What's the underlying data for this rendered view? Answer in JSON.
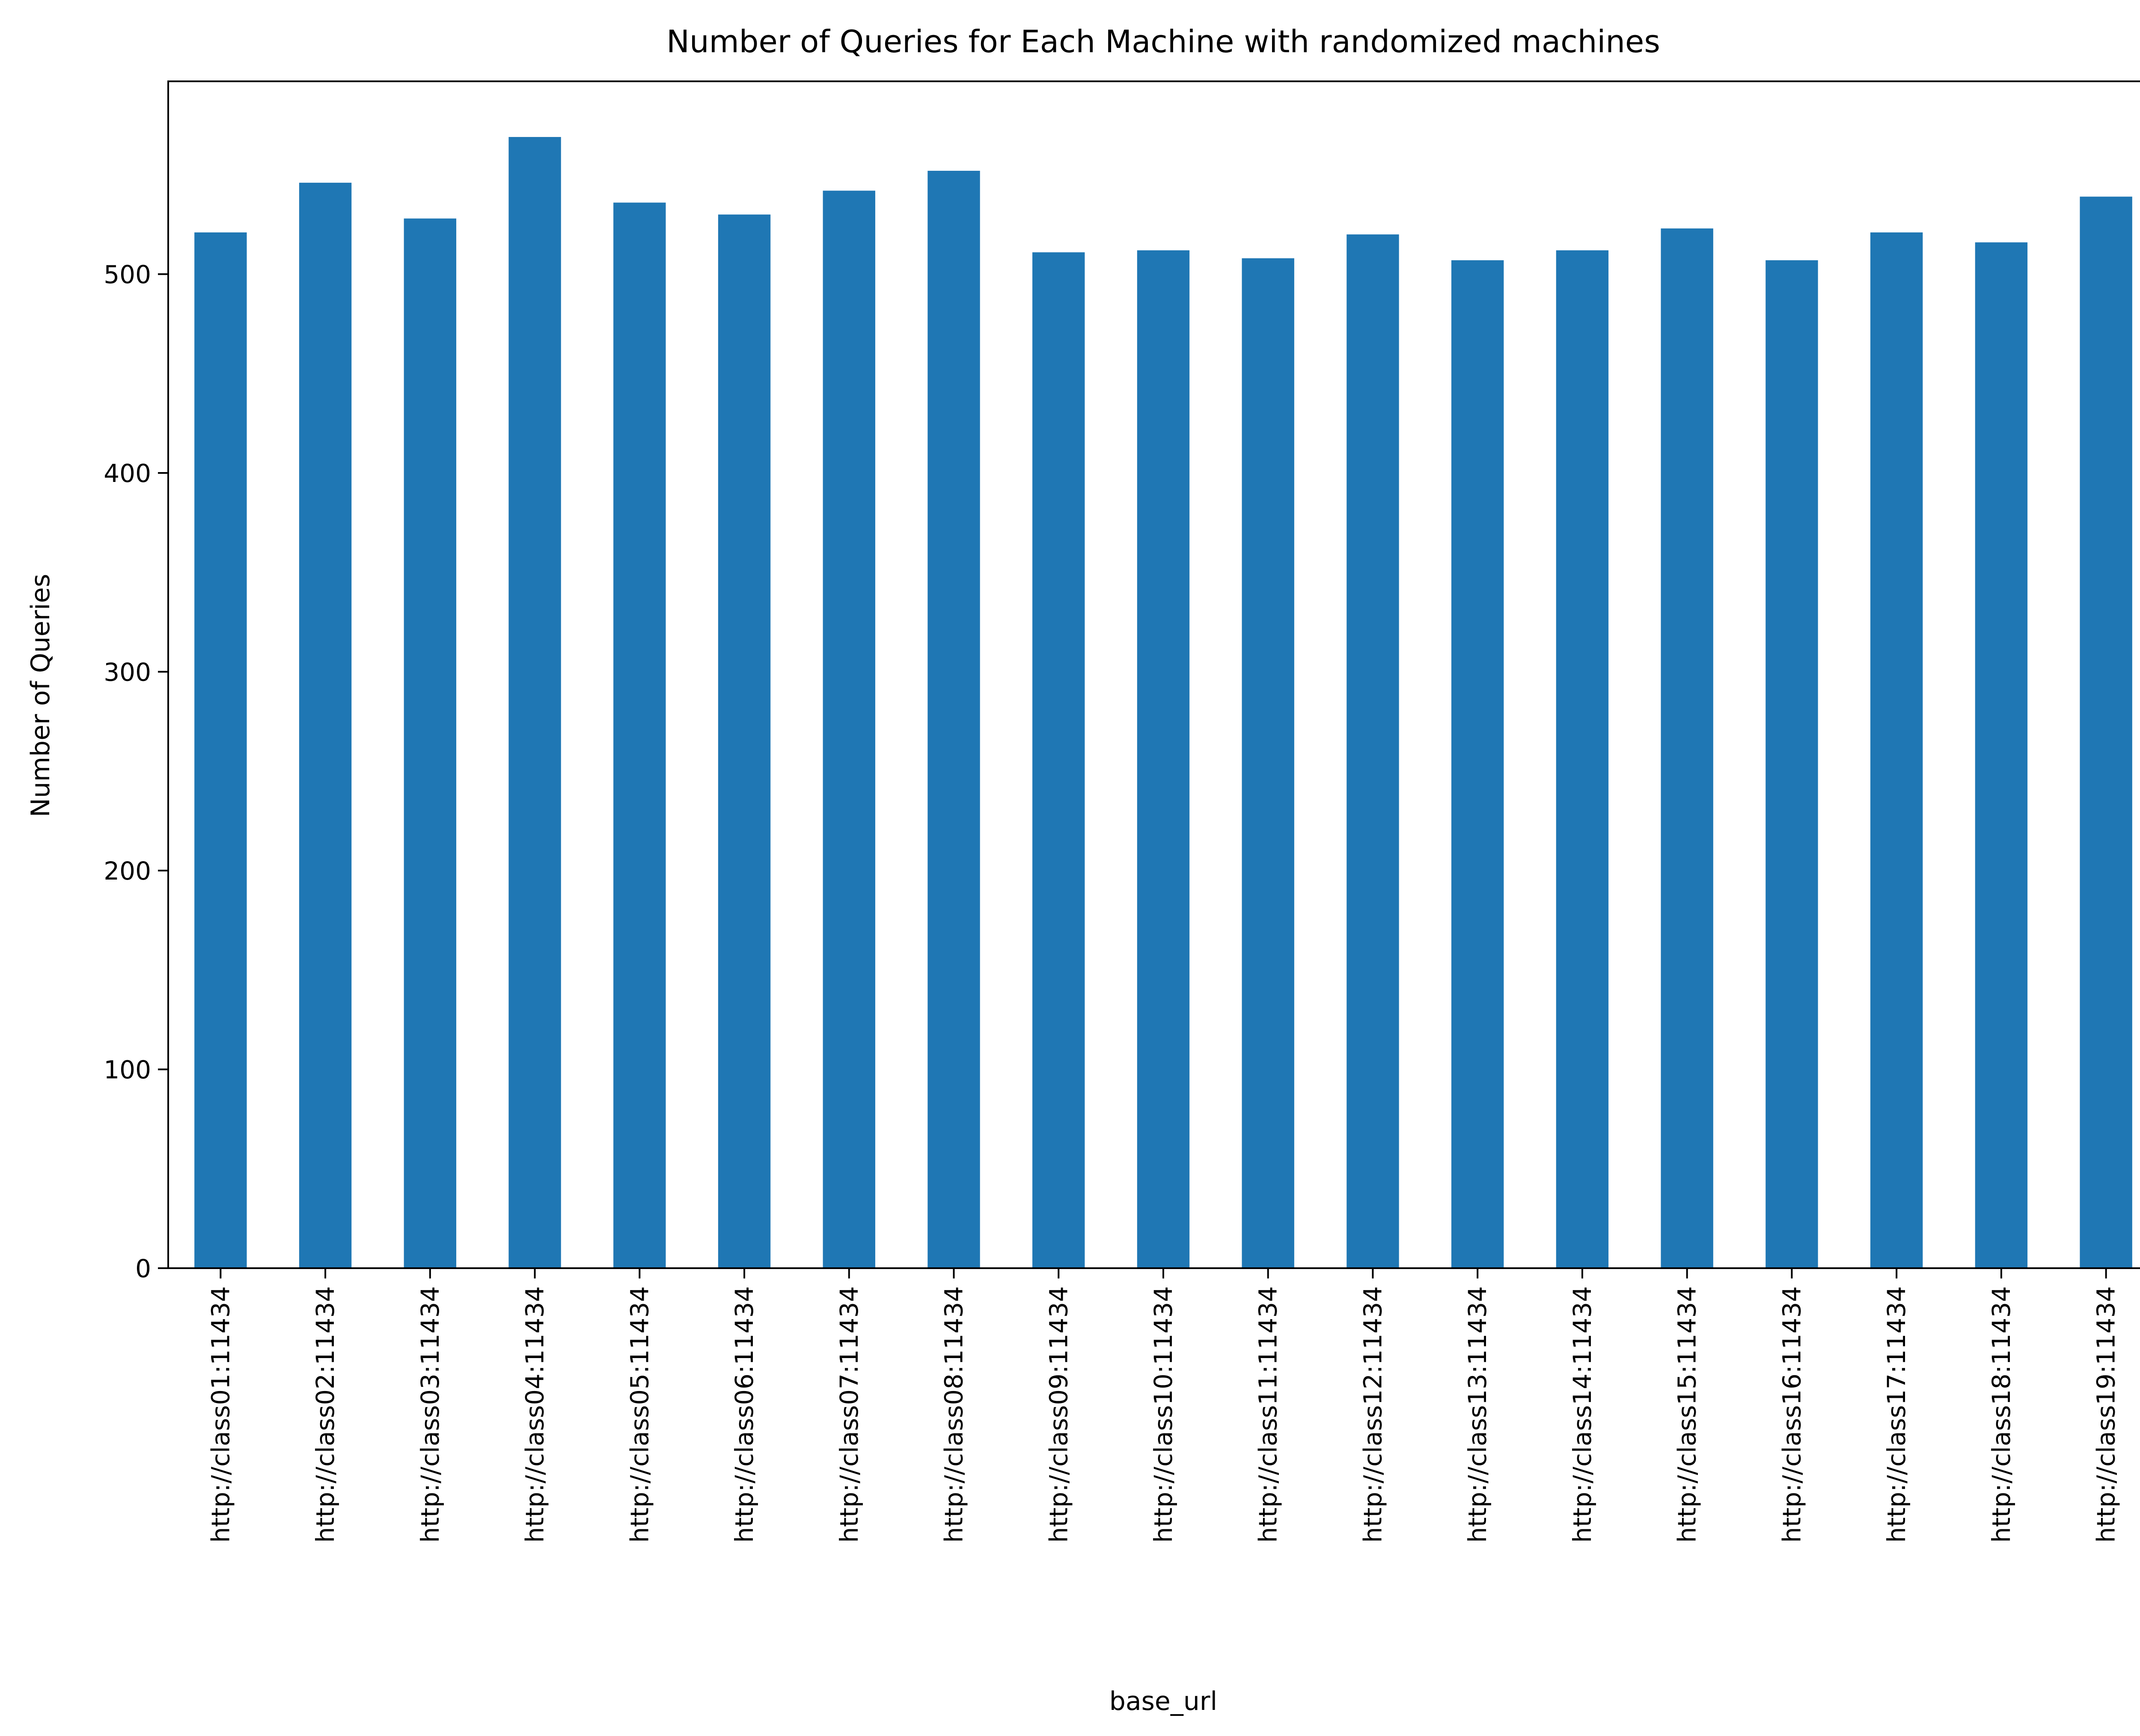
{
  "chart_data": {
    "type": "bar",
    "title": "Number of Queries for Each Machine with randomized machines",
    "xlabel": "base_url",
    "ylabel": "Number of Queries",
    "categories": [
      "http://class01:11434",
      "http://class02:11434",
      "http://class03:11434",
      "http://class04:11434",
      "http://class05:11434",
      "http://class06:11434",
      "http://class07:11434",
      "http://class08:11434",
      "http://class09:11434",
      "http://class10:11434",
      "http://class11:11434",
      "http://class12:11434",
      "http://class13:11434",
      "http://class14:11434",
      "http://class15:11434",
      "http://class16:11434",
      "http://class17:11434",
      "http://class18:11434",
      "http://class19:11434"
    ],
    "values": [
      521,
      546,
      528,
      569,
      536,
      530,
      542,
      552,
      511,
      512,
      508,
      520,
      507,
      512,
      523,
      507,
      521,
      516,
      539
    ],
    "ylim": [
      0,
      597
    ],
    "yticks": [
      0,
      100,
      200,
      300,
      400,
      500
    ],
    "grid": false,
    "bar_color": "#1f77b4"
  }
}
